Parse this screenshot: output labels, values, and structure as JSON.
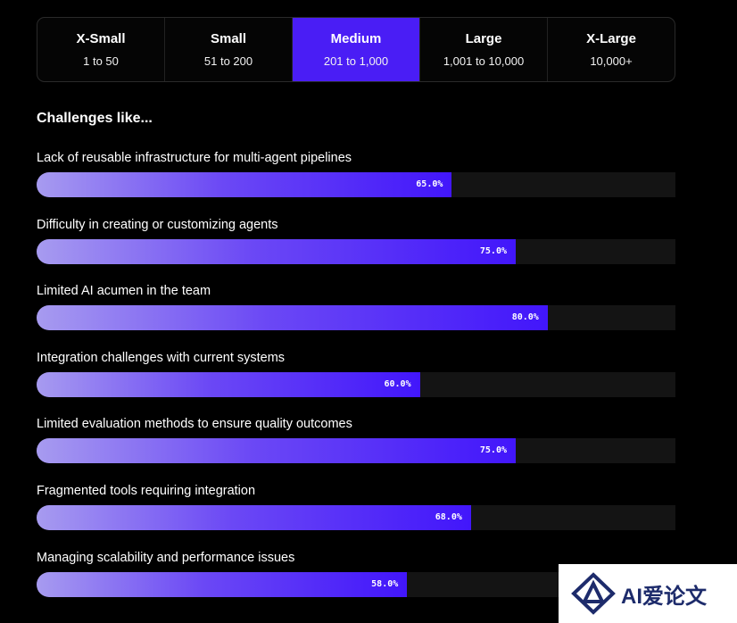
{
  "size_tabs": [
    {
      "title": "X-Small",
      "range": "1 to 50",
      "active": false
    },
    {
      "title": "Small",
      "range": "51 to 200",
      "active": false
    },
    {
      "title": "Medium",
      "range": "201 to 1,000",
      "active": true
    },
    {
      "title": "Large",
      "range": "1,001 to 10,000",
      "active": false
    },
    {
      "title": "X-Large",
      "range": "10,000+",
      "active": false
    }
  ],
  "section_title": "Challenges like...",
  "challenges": [
    {
      "label": "Lack of reusable infrastructure for multi-agent pipelines",
      "percent": 65.0,
      "value_text": "65.0%"
    },
    {
      "label": "Difficulty in creating or customizing agents",
      "percent": 75.0,
      "value_text": "75.0%"
    },
    {
      "label": "Limited AI acumen in the team",
      "percent": 80.0,
      "value_text": "80.0%"
    },
    {
      "label": "Integration challenges with current systems",
      "percent": 60.0,
      "value_text": "60.0%"
    },
    {
      "label": "Limited evaluation methods to ensure quality outcomes",
      "percent": 75.0,
      "value_text": "75.0%"
    },
    {
      "label": "Fragmented tools requiring integration",
      "percent": 68.0,
      "value_text": "68.0%"
    },
    {
      "label": "Managing scalability and performance issues",
      "percent": 58.0,
      "value_text": "58.0%"
    }
  ],
  "colors": {
    "accent": "#4a1df5",
    "bar_start": "#a79bf0",
    "bar_end": "#4216fb",
    "track": "#141414",
    "background": "#000000"
  },
  "watermark": {
    "text": "AI爱论文"
  }
}
